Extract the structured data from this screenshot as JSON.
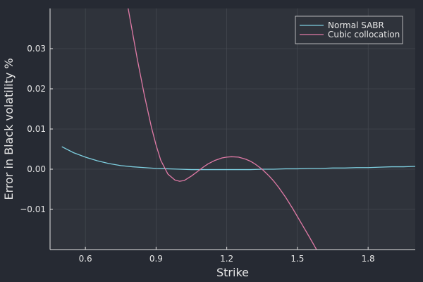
{
  "chart_data": {
    "type": "line",
    "xlabel": "Strike",
    "ylabel": "Error in Black volatility %",
    "xlim": [
      0.45,
      2.0
    ],
    "ylim": [
      -0.02,
      0.04
    ],
    "xticks": [
      0.6,
      0.9,
      1.2,
      1.5,
      1.8
    ],
    "yticks": [
      -0.01,
      0.0,
      0.01,
      0.02,
      0.03
    ],
    "xtick_labels": [
      "0.6",
      "0.9",
      "1.2",
      "1.5",
      "1.8"
    ],
    "ytick_labels": [
      "−0.01",
      "0.00",
      "0.01",
      "0.02",
      "0.03"
    ],
    "grid": true,
    "legend_position": "top-right",
    "series": [
      {
        "name": "Normal SABR",
        "color": "#7ecfe0",
        "x": [
          0.5,
          0.55,
          0.6,
          0.65,
          0.7,
          0.75,
          0.8,
          0.85,
          0.9,
          0.95,
          1.0,
          1.05,
          1.1,
          1.15,
          1.2,
          1.25,
          1.3,
          1.35,
          1.4,
          1.45,
          1.5,
          1.55,
          1.6,
          1.65,
          1.7,
          1.75,
          1.8,
          1.85,
          1.9,
          1.95,
          2.0
        ],
        "values": [
          0.0056,
          0.0041,
          0.003,
          0.0021,
          0.0014,
          0.0009,
          0.0006,
          0.0004,
          0.0002,
          0.0001,
          0.0,
          -0.0001,
          -0.0001,
          -0.0001,
          -0.0001,
          -0.0001,
          -0.0001,
          0.0,
          0.0,
          0.0001,
          0.0001,
          0.0002,
          0.0002,
          0.0003,
          0.0003,
          0.0004,
          0.0004,
          0.0005,
          0.0006,
          0.0006,
          0.0007
        ]
      },
      {
        "name": "Cubic collocation",
        "color": "#e07aa6",
        "x": [
          0.78,
          0.8,
          0.82,
          0.85,
          0.88,
          0.9,
          0.92,
          0.95,
          0.98,
          1.0,
          1.02,
          1.05,
          1.08,
          1.1,
          1.12,
          1.15,
          1.18,
          1.2,
          1.22,
          1.25,
          1.28,
          1.3,
          1.32,
          1.35,
          1.38,
          1.4,
          1.42,
          1.45,
          1.48,
          1.5,
          1.52,
          1.55,
          1.58,
          1.6,
          1.62,
          1.64
        ],
        "values": [
          0.0405,
          0.034,
          0.0275,
          0.0185,
          0.0105,
          0.006,
          0.0022,
          -0.0012,
          -0.0027,
          -0.003,
          -0.0028,
          -0.0017,
          -0.0004,
          0.0005,
          0.0013,
          0.0022,
          0.0028,
          0.003,
          0.0031,
          0.003,
          0.0025,
          0.002,
          0.0013,
          0.0,
          -0.0017,
          -0.003,
          -0.0045,
          -0.007,
          -0.0098,
          -0.0118,
          -0.0138,
          -0.0168,
          -0.0199,
          -0.0221,
          -0.0242,
          -0.0265
        ]
      }
    ]
  }
}
